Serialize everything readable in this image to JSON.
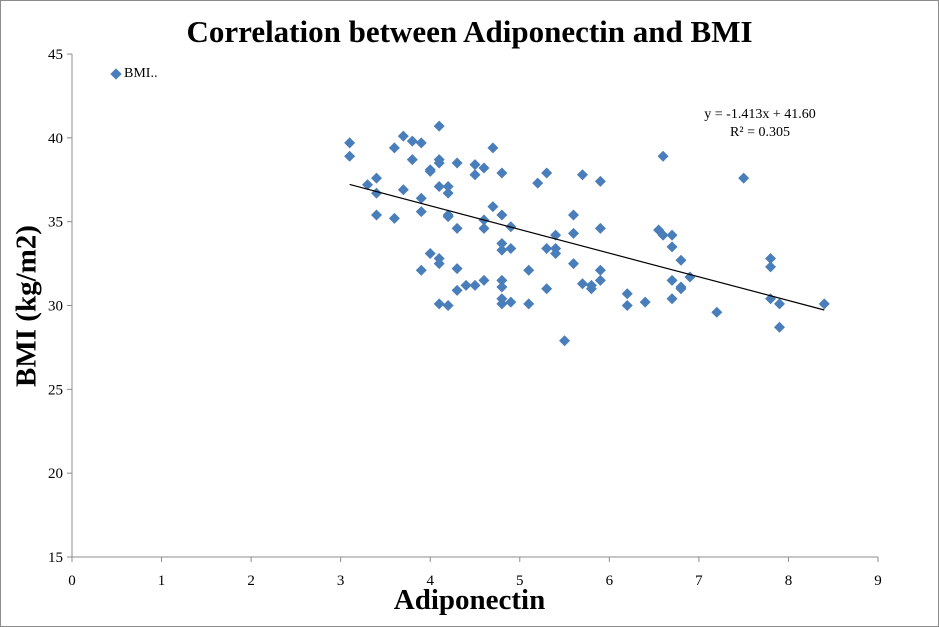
{
  "chart_data": {
    "type": "scatter",
    "title": "Correlation between Adiponectin and BMI",
    "xlabel": "Adiponectin",
    "ylabel": "BMI (kg/m2)",
    "xlim": [
      0,
      9
    ],
    "ylim": [
      15,
      45
    ],
    "xticks": [
      0,
      1,
      2,
      3,
      4,
      5,
      6,
      7,
      8,
      9
    ],
    "yticks": [
      15,
      20,
      25,
      30,
      35,
      40,
      45
    ],
    "grid": false,
    "legend": {
      "position": "top-left",
      "entries": [
        "BMI.."
      ]
    },
    "marker_color": "#4a7ebb",
    "trendline": {
      "type": "linear",
      "slope": -1.413,
      "intercept": 41.6,
      "x_range": [
        3.1,
        8.4
      ],
      "equation_label": "y = -1.413x + 41.60",
      "r2_label": "R² = 0.305"
    },
    "series": [
      {
        "name": "BMI..",
        "points": [
          [
            3.1,
            39.7
          ],
          [
            3.1,
            38.9
          ],
          [
            3.3,
            37.2
          ],
          [
            3.4,
            37.6
          ],
          [
            3.4,
            36.7
          ],
          [
            3.4,
            35.4
          ],
          [
            3.6,
            39.4
          ],
          [
            3.6,
            35.2
          ],
          [
            3.7,
            40.1
          ],
          [
            3.7,
            36.9
          ],
          [
            3.8,
            39.8
          ],
          [
            3.8,
            38.7
          ],
          [
            3.9,
            39.7
          ],
          [
            3.9,
            36.4
          ],
          [
            3.9,
            35.6
          ],
          [
            3.9,
            32.1
          ],
          [
            4.0,
            38.1
          ],
          [
            4.0,
            38.0
          ],
          [
            4.0,
            33.1
          ],
          [
            4.1,
            40.7
          ],
          [
            4.1,
            38.7
          ],
          [
            4.1,
            38.5
          ],
          [
            4.1,
            37.1
          ],
          [
            4.1,
            32.8
          ],
          [
            4.1,
            32.5
          ],
          [
            4.1,
            30.1
          ],
          [
            4.2,
            37.1
          ],
          [
            4.2,
            36.7
          ],
          [
            4.2,
            35.4
          ],
          [
            4.2,
            35.3
          ],
          [
            4.2,
            30.0
          ],
          [
            4.3,
            38.5
          ],
          [
            4.3,
            34.6
          ],
          [
            4.3,
            32.2
          ],
          [
            4.3,
            30.9
          ],
          [
            4.4,
            31.2
          ],
          [
            4.5,
            38.4
          ],
          [
            4.5,
            37.8
          ],
          [
            4.5,
            31.2
          ],
          [
            4.6,
            38.2
          ],
          [
            4.6,
            35.1
          ],
          [
            4.6,
            34.6
          ],
          [
            4.6,
            31.5
          ],
          [
            4.7,
            39.4
          ],
          [
            4.7,
            35.9
          ],
          [
            4.8,
            37.9
          ],
          [
            4.8,
            35.4
          ],
          [
            4.8,
            33.7
          ],
          [
            4.8,
            33.3
          ],
          [
            4.8,
            31.5
          ],
          [
            4.8,
            31.1
          ],
          [
            4.8,
            30.4
          ],
          [
            4.8,
            30.1
          ],
          [
            4.9,
            34.7
          ],
          [
            4.9,
            33.4
          ],
          [
            4.9,
            30.2
          ],
          [
            5.1,
            32.1
          ],
          [
            5.1,
            30.1
          ],
          [
            5.2,
            37.3
          ],
          [
            5.3,
            37.9
          ],
          [
            5.3,
            33.4
          ],
          [
            5.3,
            31.0
          ],
          [
            5.4,
            34.2
          ],
          [
            5.4,
            33.4
          ],
          [
            5.4,
            33.1
          ],
          [
            5.5,
            27.9
          ],
          [
            5.6,
            35.4
          ],
          [
            5.6,
            34.3
          ],
          [
            5.6,
            32.5
          ],
          [
            5.7,
            37.8
          ],
          [
            5.7,
            31.3
          ],
          [
            5.8,
            31.2
          ],
          [
            5.8,
            31.0
          ],
          [
            5.9,
            37.4
          ],
          [
            5.9,
            34.6
          ],
          [
            5.9,
            32.1
          ],
          [
            5.9,
            31.5
          ],
          [
            6.2,
            30.7
          ],
          [
            6.2,
            30.0
          ],
          [
            6.4,
            30.2
          ],
          [
            6.55,
            34.5
          ],
          [
            6.6,
            38.9
          ],
          [
            6.6,
            34.2
          ],
          [
            6.7,
            34.2
          ],
          [
            6.7,
            33.5
          ],
          [
            6.7,
            31.5
          ],
          [
            6.7,
            30.4
          ],
          [
            6.8,
            32.7
          ],
          [
            6.8,
            31.1
          ],
          [
            6.8,
            31.0
          ],
          [
            6.9,
            31.7
          ],
          [
            7.2,
            29.6
          ],
          [
            7.5,
            37.6
          ],
          [
            7.8,
            32.8
          ],
          [
            7.8,
            32.3
          ],
          [
            7.8,
            30.4
          ],
          [
            7.9,
            30.1
          ],
          [
            7.9,
            28.7
          ],
          [
            8.4,
            30.1
          ]
        ]
      }
    ]
  }
}
